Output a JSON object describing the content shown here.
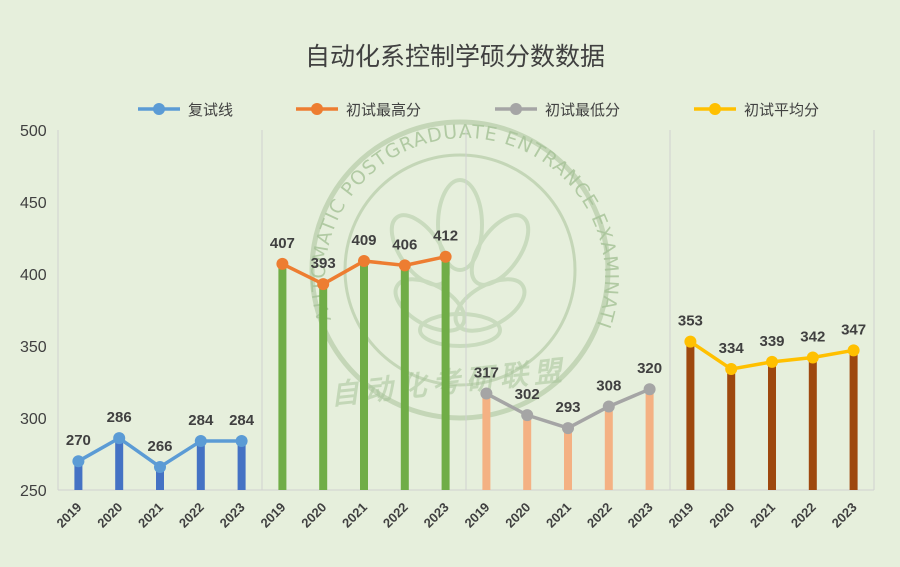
{
  "chart_data": {
    "type": "bar",
    "title": "自动化系控制学硕分数数据",
    "categories": [
      "2019",
      "2020",
      "2021",
      "2022",
      "2023"
    ],
    "ylim": [
      250,
      500
    ],
    "yticks": [
      250,
      300,
      350,
      400,
      450,
      500
    ],
    "grid": false,
    "legend_position": "top",
    "series": [
      {
        "name": "复试线",
        "values": [
          270,
          286,
          266,
          284,
          284
        ],
        "line_color": "#5b9bd5",
        "bar_color": "#4472c4"
      },
      {
        "name": "初试最高分",
        "values": [
          407,
          393,
          409,
          406,
          412
        ],
        "line_color": "#ed7d31",
        "bar_color": "#70ad47"
      },
      {
        "name": "初试最低分",
        "values": [
          317,
          302,
          293,
          308,
          320
        ],
        "line_color": "#a5a5a5",
        "bar_color": "#f4b183"
      },
      {
        "name": "初试平均分",
        "values": [
          353,
          334,
          339,
          342,
          347
        ],
        "line_color": "#ffc000",
        "bar_color": "#9e480e"
      }
    ]
  },
  "watermark": {
    "ring_text": "AUTOMATIC POSTGRADUATE ENTRANCE EXAMINATION ALLIANCE",
    "center_text": "自动化考研联盟"
  }
}
